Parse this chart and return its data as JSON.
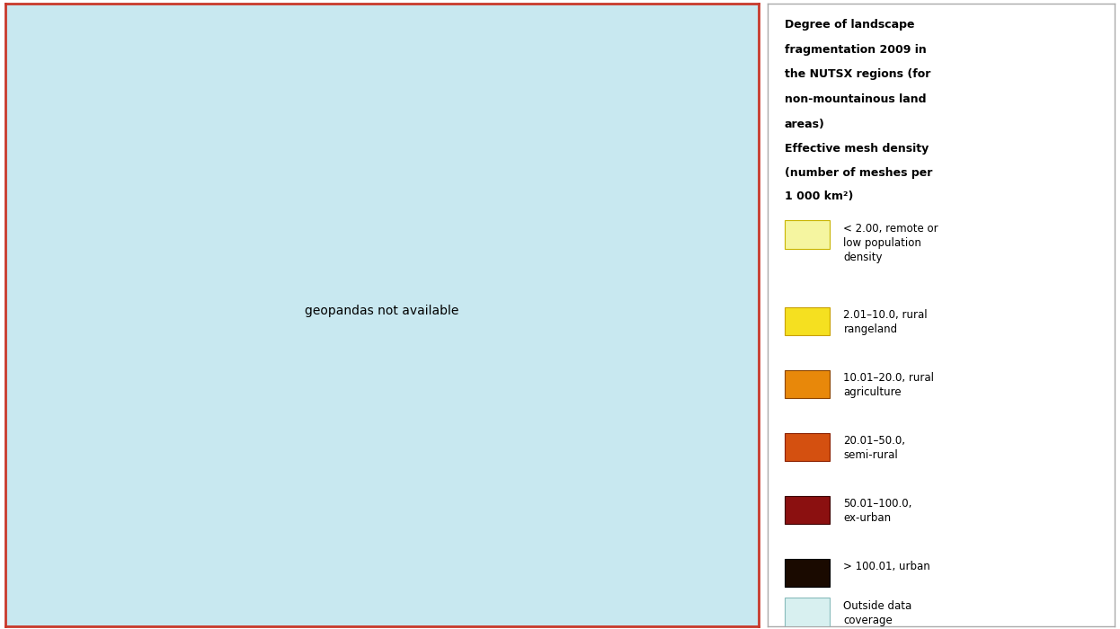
{
  "figure_width": 12.46,
  "figure_height": 7.0,
  "dpi": 100,
  "map_bg_color": "#c8e8f0",
  "map_border_color": "#c8392b",
  "legend_bg_color": "#ffffff",
  "legend_border_color": "#aaaaaa",
  "outer_bg_color": "#ffffff",
  "legend_title_bold": [
    "Degree of landscape",
    "fragmentation 2009 in",
    "the NUTSX regions (for",
    "non-mountainous land",
    "areas)"
  ],
  "legend_subtitle_bold": [
    "Effective mesh density",
    "(number of meshes per",
    "1 000 km²)"
  ],
  "legend_items": [
    {
      "color": "#f5f5a0",
      "border": "#c8b400",
      "label": "< 2.00, remote or\nlow population\ndensity"
    },
    {
      "color": "#f5e020",
      "border": "#c8a000",
      "label": "2.01–10.0, rural\nrangeland"
    },
    {
      "color": "#e8880a",
      "border": "#8b4400",
      "label": "10.01–20.0, rural\nagriculture"
    },
    {
      "color": "#d45010",
      "border": "#8b2000",
      "label": "20.01–50.0,\nsemi-rural"
    },
    {
      "color": "#8b1010",
      "border": "#3a0000",
      "label": "50.01–100.0,\nex-urban"
    },
    {
      "color": "#1a0a00",
      "border": "#000000",
      "label": "> 100.01, urban"
    },
    {
      "color": "#d8f0f0",
      "border": "#88bbbb",
      "label": "Outside data\ncoverage"
    }
  ],
  "colors": {
    "pale_yellow": "#f5f5a0",
    "yellow": "#f5e020",
    "orange": "#e8880a",
    "orange_dark": "#d45010",
    "dark_red": "#8b1010",
    "black": "#1a0a00",
    "outside": "#c8e8f0"
  },
  "country_colors": {
    "ISL": "pale_yellow",
    "NOR": "pale_yellow",
    "SWE": "pale_yellow",
    "FIN": "pale_yellow",
    "DNK": "orange_dark",
    "IRL": "yellow",
    "GBR": "yellow",
    "PRT": "yellow",
    "ESP": "orange",
    "FRA": "dark_red",
    "BEL": "black",
    "NLD": "black",
    "LUX": "black",
    "DEU": "black",
    "CHE": "dark_red",
    "AUT": "dark_red",
    "ITA": "orange",
    "POL": "dark_red",
    "CZE": "dark_red",
    "SVK": "dark_red",
    "HUN": "orange_dark",
    "SVN": "dark_red",
    "HRV": "orange",
    "BIH": "orange",
    "SRB": "orange",
    "MNE": "orange",
    "ALB": "orange",
    "MKD": "orange",
    "BGR": "yellow",
    "ROU": "yellow",
    "GRC": "yellow",
    "CYP": "black",
    "MLT": "black",
    "EST": "pale_yellow",
    "LVA": "yellow",
    "LTU": "yellow",
    "BLR": "yellow",
    "UKR": "yellow",
    "MDA": "yellow",
    "TUR": "outside",
    "RUS": "yellow",
    "KOS": "orange",
    "LIE": "dark_red",
    "MCO": "black",
    "AND": "orange_dark",
    "SMR": "dark_red"
  }
}
